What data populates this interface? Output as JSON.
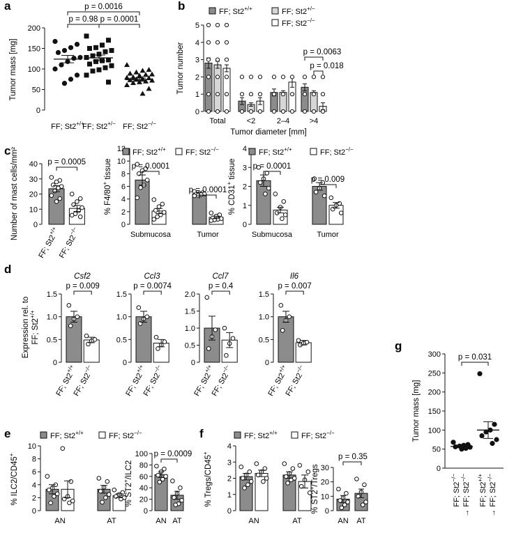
{
  "colors": {
    "wt": "#8c8c8c",
    "ko_fill": "#ffffff",
    "bar_light": "#d6d6d6",
    "dot": "#111111",
    "axis": "#111111"
  },
  "chart_data": [
    {
      "id": "a",
      "panel_label": "a",
      "type": "scatter",
      "ylabel": "Tumor mass [mg]",
      "ylim": [
        0,
        200
      ],
      "yticks": [
        0,
        50,
        100,
        150,
        200
      ],
      "categories": [
        "FF; St2+/+",
        "FF; St2+/−",
        "FF; St2−/−"
      ],
      "category_labels": [
        [
          "FF; St2",
          "+/+"
        ],
        [
          "FF; St2",
          "+/−"
        ],
        [
          "FF; St2",
          "−/−"
        ]
      ],
      "series": [
        {
          "values": [
            167,
            160,
            152,
            145,
            140,
            128,
            126,
            118,
            110,
            100,
            85,
            75,
            65
          ],
          "mean": 124,
          "sem": 9
        },
        {
          "values": [
            180,
            170,
            158,
            152,
            150,
            145,
            142,
            136,
            132,
            128,
            122,
            120,
            118,
            112,
            108,
            103,
            98,
            95,
            85,
            68
          ],
          "mean": 127,
          "sem": 7
        },
        {
          "values": [
            110,
            98,
            96,
            92,
            89,
            87,
            86,
            84,
            80,
            79,
            78,
            76,
            75,
            73,
            72,
            70,
            68,
            66,
            61,
            52,
            40
          ],
          "mean": 74,
          "sem": 4
        }
      ],
      "markers": [
        "circle",
        "square",
        "triangle"
      ],
      "pvalues": [
        {
          "text": "p = 0.0016",
          "from": 0,
          "to": 2
        },
        {
          "text": "p = 0.98",
          "from": 0,
          "to": 1
        },
        {
          "text": "p = 0.0001",
          "from": 1,
          "to": 2
        }
      ]
    },
    {
      "id": "b",
      "panel_label": "b",
      "type": "bar",
      "ylabel": "Tumor number",
      "xlabel": "Tumor diameter [mm]",
      "ylim": [
        0,
        5
      ],
      "yticks": [
        0,
        1,
        2,
        3,
        4,
        5
      ],
      "categories": [
        "Total",
        "<2",
        "2–4",
        ">4"
      ],
      "legend": [
        [
          "FF; St2",
          "+/+"
        ],
        [
          "FF; St2",
          "+/−"
        ],
        [
          "FF; St2",
          "−/−"
        ]
      ],
      "series": [
        {
          "name": "FF; St2+/+",
          "values": [
            2.8,
            0.6,
            1.1,
            1.4
          ],
          "errors": [
            0.3,
            0.2,
            0.2,
            0.2
          ],
          "fill": "#8c8c8c"
        },
        {
          "name": "FF; St2+/−",
          "values": [
            2.7,
            0.4,
            1.1,
            1.1
          ],
          "errors": [
            0.2,
            0.1,
            0.1,
            0.1
          ],
          "fill": "#d6d6d6"
        },
        {
          "name": "FF; St2−/−",
          "values": [
            2.5,
            0.6,
            1.7,
            0.3
          ],
          "errors": [
            0.2,
            0.2,
            0.3,
            0.2
          ],
          "fill": "#ffffff"
        }
      ],
      "pvalues": [
        {
          "text": "p = 0.0063",
          "category": 3,
          "from": 0,
          "to": 2
        },
        {
          "text": "p = 0.018",
          "category": 3,
          "from": 1,
          "to": 2
        }
      ]
    },
    {
      "id": "c1",
      "panel_label": "c",
      "type": "bar",
      "ylabel": "Number of mast cells/mm²",
      "ylim": [
        0,
        40
      ],
      "yticks": [
        0,
        10,
        20,
        30,
        40
      ],
      "categories": [
        "FF; St2+/+",
        "FF; St2−/−"
      ],
      "xtick_rot": [
        [
          "FF; St2",
          "+/+"
        ],
        [
          "FF; St2",
          "−/−"
        ]
      ],
      "values": [
        23.5,
        10.5
      ],
      "errors": [
        2.0,
        2.0
      ],
      "points": [
        [
          31,
          29,
          28,
          26,
          25,
          24,
          22,
          19,
          17,
          15
        ],
        [
          20,
          17,
          15,
          13,
          11,
          9,
          7,
          6,
          5
        ]
      ],
      "pvalues": [
        {
          "text": "p = 0.0005",
          "from": 0,
          "to": 1
        }
      ]
    },
    {
      "id": "c2",
      "type": "bar",
      "ylabel": "% F4/80+ tissue",
      "ylabel_parts": [
        "% F4/80",
        "+",
        " tissue"
      ],
      "ylim": [
        0,
        12
      ],
      "yticks": [
        0,
        2,
        4,
        6,
        8,
        10,
        12
      ],
      "categories": [
        "Submucosa",
        "Tumor"
      ],
      "legend": [
        [
          "FF; St2",
          "+/+"
        ],
        [
          "FF; St2",
          "−/−"
        ]
      ],
      "values": [
        [
          7.0,
          2.1
        ],
        [
          4.8,
          1.1
        ]
      ],
      "errors": [
        [
          0.8,
          0.4
        ],
        [
          0.2,
          0.2
        ]
      ],
      "points": [
        [
          [
            9.5,
            8.8,
            8.5,
            8.0,
            7.0,
            6.2,
            5.8,
            4.2
          ],
          [
            3.9,
            3.2,
            2.8,
            2.2,
            1.9,
            1.5,
            1.2,
            0.8
          ]
        ],
        [
          [
            5.2,
            5.0,
            4.9,
            4.8,
            4.8,
            4.7,
            4.6,
            4.5
          ],
          [
            1.8,
            1.5,
            1.3,
            1.0,
            0.9,
            0.8,
            0.7,
            0.6
          ]
        ]
      ],
      "pvalues": [
        {
          "text": "p = 0.0001",
          "category": 0
        },
        {
          "text": "p = 0.0001",
          "category": 1
        }
      ]
    },
    {
      "id": "c3",
      "type": "bar",
      "ylabel": "% CD31+ tissue",
      "ylabel_parts": [
        "% CD31",
        "+",
        " tissue"
      ],
      "ylim": [
        0,
        4
      ],
      "yticks": [
        0,
        1,
        2,
        3,
        4
      ],
      "categories": [
        "Submucosa",
        "Tumor"
      ],
      "legend": [
        [
          "FF; St2",
          "+/+"
        ],
        [
          "FF; St2",
          "−/−"
        ]
      ],
      "values": [
        [
          2.3,
          0.75
        ],
        [
          2.0,
          1.0
        ]
      ],
      "errors": [
        [
          0.3,
          0.15
        ],
        [
          0.2,
          0.15
        ]
      ],
      "points": [
        [
          [
            3.0,
            2.7,
            2.4,
            2.2,
            1.9,
            1.6
          ],
          [
            1.6,
            1.2,
            0.9,
            0.6,
            0.5,
            0.3
          ]
        ],
        [
          [
            2.4,
            2.2,
            1.9,
            1.7,
            1.5
          ],
          [
            1.4,
            1.1,
            1.0,
            0.8,
            0.6
          ]
        ]
      ],
      "pvalues": [
        {
          "text": "p = 0.0001",
          "category": 0
        },
        {
          "text": "p = 0.009",
          "category": 1
        }
      ]
    },
    {
      "id": "d1",
      "panel_label": "d",
      "type": "bar",
      "gene": "Csf2",
      "ylabel": "Expression rel. to FF; St2+/+",
      "ylabel_lines": [
        [
          "Expression rel. to"
        ],
        [
          "FF; St2",
          "+/+"
        ]
      ],
      "ylim": [
        0,
        1.5
      ],
      "yticks": [
        0,
        0.5,
        1.0,
        1.5
      ],
      "ytick_labels": [
        "0",
        "0.5",
        "1.0",
        "1.5"
      ],
      "categories": [
        "FF; St2+/+",
        "FF; St2−/−"
      ],
      "xtick_rot": [
        [
          "FF; St2",
          "+/+"
        ],
        [
          "FF; St2",
          "−/−"
        ]
      ],
      "values": [
        1.0,
        0.49
      ],
      "errors": [
        0.12,
        0.06
      ],
      "points": [
        [
          1.25,
          1.0,
          0.95,
          0.8
        ],
        [
          0.58,
          0.5,
          0.47,
          0.4
        ]
      ],
      "pvalues": [
        {
          "text": "p = 0.009",
          "from": 0,
          "to": 1
        }
      ]
    },
    {
      "id": "d2",
      "type": "bar",
      "gene": "Ccl3",
      "ylim": [
        0,
        1.5
      ],
      "yticks": [
        0,
        0.5,
        1.0,
        1.5
      ],
      "ytick_labels": [
        "0",
        "0.5",
        "1.0",
        "1.5"
      ],
      "categories": [
        "FF; St2+/+",
        "FF; St2−/−"
      ],
      "xtick_rot": [
        [
          "FF; St2",
          "+/+"
        ],
        [
          "FF; St2",
          "−/−"
        ]
      ],
      "values": [
        1.0,
        0.42
      ],
      "errors": [
        0.12,
        0.08
      ],
      "points": [
        [
          1.2,
          1.0,
          0.95,
          0.85
        ],
        [
          0.55,
          0.45,
          0.38,
          0.3
        ]
      ],
      "pvalues": [
        {
          "text": "p = 0.0074",
          "from": 0,
          "to": 1
        }
      ]
    },
    {
      "id": "d3",
      "type": "bar",
      "gene": "Ccl7",
      "ylim": [
        0,
        2.0
      ],
      "yticks": [
        0,
        0.5,
        1.0,
        1.5,
        2.0
      ],
      "ytick_labels": [
        "0",
        "0.5",
        "1.0",
        "1.5",
        "2.0"
      ],
      "categories": [
        "FF; St2+/+",
        "FF; St2−/−"
      ],
      "xtick_rot": [
        [
          "FF; St2",
          "+/+"
        ],
        [
          "FF; St2",
          "−/−"
        ]
      ],
      "values": [
        1.0,
        0.65
      ],
      "errors": [
        0.35,
        0.22
      ],
      "points": [
        [
          1.9,
          0.95,
          0.75,
          0.4
        ],
        [
          1.0,
          0.7,
          0.55,
          0.2
        ]
      ],
      "pvalues": [
        {
          "text": "p = 0.4",
          "from": 0,
          "to": 1
        }
      ]
    },
    {
      "id": "d4",
      "type": "bar",
      "gene": "Il6",
      "ylim": [
        0,
        1.5
      ],
      "yticks": [
        0,
        0.5,
        1.0,
        1.5
      ],
      "ytick_labels": [
        "0",
        "0.5",
        "1.0",
        "1.5"
      ],
      "categories": [
        "FF; St2+/+",
        "FF; St2−/−"
      ],
      "xtick_rot": [
        [
          "FF; St2",
          "+/+"
        ],
        [
          "FF; St2",
          "−/−"
        ]
      ],
      "values": [
        1.0,
        0.43
      ],
      "errors": [
        0.12,
        0.05
      ],
      "points": [
        [
          1.25,
          1.0,
          0.92,
          0.7
        ],
        [
          0.48,
          0.44,
          0.42,
          0.38
        ]
      ],
      "pvalues": [
        {
          "text": "p = 0.007",
          "from": 0,
          "to": 1
        }
      ]
    },
    {
      "id": "e1",
      "panel_label": "e",
      "type": "bar",
      "ylabel": "% ILC2/CD45+",
      "ylabel_parts": [
        "% ILC2/CD45",
        "+",
        ""
      ],
      "ylim": [
        0,
        10
      ],
      "yticks": [
        0,
        2,
        4,
        6,
        8,
        10
      ],
      "categories": [
        "AN",
        "AT"
      ],
      "legend": [
        [
          "FF; St2",
          "+/+"
        ],
        [
          "FF; St2",
          "−/−"
        ]
      ],
      "values": [
        [
          3.3,
          3.3
        ],
        [
          3.3,
          2.3
        ]
      ],
      "errors": [
        [
          0.7,
          1.3
        ],
        [
          0.6,
          0.3
        ]
      ],
      "points": [
        [
          [
            5.3,
            4.0,
            3.5,
            3.2,
            2.6,
            2.2,
            1.2
          ],
          [
            9.6,
            4.5,
            2.2,
            1.8,
            1.5,
            1.2
          ]
        ],
        [
          [
            5.0,
            4.5,
            3.6,
            3.0,
            2.5,
            2.0,
            1.3
          ],
          [
            3.2,
            2.8,
            2.5,
            2.2,
            2.0,
            1.8
          ]
        ]
      ]
    },
    {
      "id": "e2",
      "type": "bar",
      "ylabel": "% ST2+/ILC2",
      "ylabel_parts": [
        "% ST2",
        "+",
        "/ILC2"
      ],
      "ylim": [
        0,
        100
      ],
      "yticks": [
        0,
        20,
        40,
        60,
        80,
        100
      ],
      "categories": [
        "AN",
        "AT"
      ],
      "values": [
        63,
        27
      ],
      "errors": [
        5,
        7
      ],
      "points": [
        [
          78,
          73,
          68,
          62,
          60,
          55,
          50
        ],
        [
          52,
          40,
          30,
          23,
          18,
          12,
          10
        ]
      ],
      "pvalues": [
        {
          "text": "p = 0.0009",
          "from": 0,
          "to": 1
        }
      ]
    },
    {
      "id": "f1",
      "panel_label": "f",
      "type": "bar",
      "ylabel": "% Tregs/CD45+",
      "ylabel_parts": [
        "% Tregs/CD45",
        "+",
        ""
      ],
      "ylim": [
        0,
        4
      ],
      "yticks": [
        0,
        1,
        2,
        3,
        4
      ],
      "categories": [
        "AN",
        "AT"
      ],
      "legend": [
        [
          "FF; St2",
          "+/+"
        ],
        [
          "FF; St2",
          "−/−"
        ]
      ],
      "values": [
        [
          2.1,
          2.3
        ],
        [
          2.2,
          1.8
        ]
      ],
      "errors": [
        [
          0.2,
          0.2
        ],
        [
          0.2,
          0.4
        ]
      ],
      "points": [
        [
          [
            2.7,
            2.4,
            2.2,
            2.0,
            1.8,
            1.6,
            1.4
          ],
          [
            2.9,
            2.6,
            2.4,
            2.2,
            2.0,
            1.8
          ]
        ],
        [
          [
            2.9,
            2.6,
            2.3,
            2.1,
            2.0,
            1.9,
            1.7
          ],
          [
            2.8,
            2.4,
            1.9,
            1.5,
            1.1
          ]
        ]
      ]
    },
    {
      "id": "f2",
      "type": "bar",
      "ylabel": "% ST2+/Tregs",
      "ylabel_parts": [
        "% ST2",
        "+",
        "/Tregs"
      ],
      "ylim": [
        0,
        30
      ],
      "yticks": [
        0,
        10,
        20,
        30
      ],
      "categories": [
        "AN",
        "AT"
      ],
      "values": [
        8,
        12
      ],
      "errors": [
        2.5,
        3
      ],
      "points": [
        [
          15,
          12,
          9,
          7,
          6,
          4,
          2
        ],
        [
          22,
          18,
          13,
          10,
          6,
          4
        ]
      ],
      "pvalues": [
        {
          "text": "p = 0.35",
          "from": 0,
          "to": 1
        }
      ]
    },
    {
      "id": "g",
      "panel_label": "g",
      "type": "scatter",
      "ylabel": "Tumor mass [mg]",
      "ylim": [
        0,
        300
      ],
      "yticks": [
        0,
        50,
        100,
        150,
        200,
        250,
        300
      ],
      "categories": [
        "FF; St2−/− → FF; St2−/−",
        "FF; St2+/+ → FF; St2−/−"
      ],
      "xtick_rot_lines": [
        [
          [
            "FF; St2",
            "−/−"
          ],
          [
            "→ FF; St2",
            "−/−"
          ]
        ],
        [
          [
            "FF; St2",
            "+/+"
          ],
          [
            "→ FF; St2",
            "−/−"
          ]
        ]
      ],
      "series": [
        {
          "values": [
            68,
            62,
            60,
            58,
            56,
            55,
            52,
            50
          ],
          "mean": 57,
          "sem": 3
        },
        {
          "values": [
            248,
            115,
            100,
            95,
            85,
            75,
            65
          ],
          "mean": 100,
          "sem": 22
        }
      ],
      "pvalues": [
        {
          "text": "p = 0.031",
          "from": 0,
          "to": 1
        }
      ]
    }
  ]
}
